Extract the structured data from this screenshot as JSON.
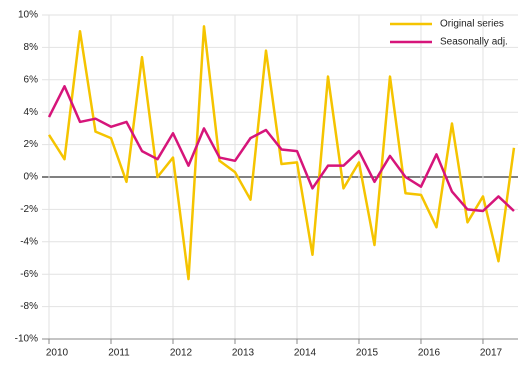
{
  "chart_data": {
    "type": "line",
    "x": [
      2010,
      2010.25,
      2010.5,
      2010.75,
      2011,
      2011.25,
      2011.5,
      2011.75,
      2012,
      2012.25,
      2012.5,
      2012.75,
      2013,
      2013.25,
      2013.5,
      2013.75,
      2014,
      2014.25,
      2014.5,
      2014.75,
      2015,
      2015.25,
      2015.5,
      2015.75,
      2016,
      2016.25,
      2016.5,
      2016.75,
      2017,
      2017.25,
      2017.5
    ],
    "series": [
      {
        "name": "Original series",
        "color": "#f5c400",
        "values": [
          2.6,
          1.1,
          9.0,
          2.8,
          2.4,
          -0.3,
          7.4,
          0.0,
          1.2,
          -6.3,
          9.3,
          1.0,
          0.3,
          -1.4,
          7.8,
          0.8,
          0.9,
          -4.8,
          6.2,
          -0.7,
          0.9,
          -4.2,
          6.2,
          -1.0,
          -1.1,
          -3.1,
          3.3,
          -2.8,
          -1.2,
          -5.2,
          1.8
        ]
      },
      {
        "name": "Seasonally adj.",
        "color": "#d6157a",
        "values": [
          3.7,
          5.6,
          3.4,
          3.6,
          3.1,
          3.4,
          1.6,
          1.1,
          2.7,
          0.7,
          3.0,
          1.2,
          1.0,
          2.4,
          2.9,
          1.7,
          1.6,
          -0.7,
          0.7,
          0.7,
          1.6,
          -0.3,
          1.3,
          0.0,
          -0.6,
          1.4,
          -0.9,
          -2.0,
          -2.1,
          -1.2,
          -2.1
        ]
      }
    ],
    "xlim": [
      2009.887,
      2017.565
    ],
    "xticks": [
      2010,
      2011,
      2012,
      2013,
      2014,
      2015,
      2016,
      2017
    ],
    "ylim": [
      -10,
      10
    ],
    "yticks": [
      {
        "value": -10,
        "label": "-10%"
      },
      {
        "value": -8,
        "label": "-8%"
      },
      {
        "value": -6,
        "label": "-6%"
      },
      {
        "value": -4,
        "label": "-4%"
      },
      {
        "value": -2,
        "label": "-2%"
      },
      {
        "value": 0,
        "label": "0%"
      },
      {
        "value": 2,
        "label": "2%"
      },
      {
        "value": 4,
        "label": "4%"
      },
      {
        "value": 6,
        "label": "6%"
      },
      {
        "value": 8,
        "label": "8%"
      },
      {
        "value": 10,
        "label": "10%"
      }
    ],
    "grid": true,
    "legend": "top-right"
  }
}
